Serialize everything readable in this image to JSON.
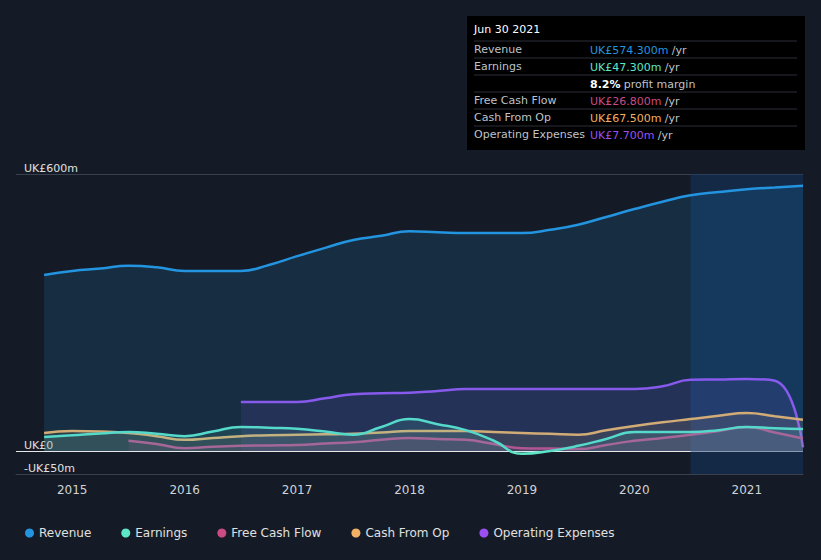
{
  "chart_data": {
    "type": "line",
    "x": [
      2014.75,
      2015,
      2015.25,
      2015.5,
      2015.75,
      2016,
      2016.25,
      2016.5,
      2016.75,
      2017,
      2017.25,
      2017.5,
      2017.75,
      2018,
      2018.25,
      2018.5,
      2018.75,
      2019,
      2019.25,
      2019.5,
      2019.75,
      2020,
      2020.25,
      2020.5,
      2020.75,
      2021,
      2021.25,
      2021.5
    ],
    "series": [
      {
        "name": "Revenue",
        "color": "#2394df",
        "values": [
          381,
          390,
          395,
          401,
          398,
          390,
          390,
          390,
          403,
          422,
          440,
          457,
          466,
          476,
          474,
          472,
          472,
          472,
          479,
          490,
          507,
          524,
          540,
          554,
          561,
          567,
          571,
          574.3
        ]
      },
      {
        "name": "Earnings",
        "color": "#5ee5c8",
        "values": [
          30,
          34,
          38,
          41,
          37,
          32,
          42,
          52,
          50,
          48,
          42,
          35,
          52,
          69,
          58,
          45,
          22,
          -6,
          0,
          11,
          26,
          41,
          41,
          41,
          45,
          52,
          49,
          47.3
        ]
      },
      {
        "name": "Free Cash Flow",
        "color": "#cb4b84",
        "values": [
          null,
          null,
          null,
          22,
          15,
          6,
          9,
          11,
          12,
          13,
          16,
          19,
          24,
          28,
          26,
          24,
          15,
          6,
          5,
          4,
          13,
          22,
          28,
          35,
          43,
          52,
          40,
          26.8
        ]
      },
      {
        "name": "Cash From Op",
        "color": "#f2b064",
        "values": [
          39,
          43,
          42,
          39,
          32,
          24,
          28,
          32,
          34,
          35,
          36,
          37,
          40,
          43,
          43,
          43,
          41,
          39,
          37,
          35,
          45,
          54,
          62,
          69,
          76,
          82,
          75,
          67.5
        ]
      },
      {
        "name": "Operating Expenses",
        "color": "#9b4ff0",
        "values": [
          null,
          null,
          null,
          null,
          null,
          null,
          null,
          106,
          106,
          106,
          114,
          123,
          125,
          126,
          130,
          134,
          134,
          134,
          134,
          134,
          134,
          134,
          140,
          154,
          155,
          156,
          152,
          7.7
        ]
      }
    ],
    "xlim": [
      2014.5,
      2021.5
    ],
    "xticks": [
      2015,
      2016,
      2017,
      2018,
      2019,
      2020,
      2021
    ],
    "ylim": [
      -50,
      600
    ],
    "yticks": [
      {
        "value": -50,
        "label": "-UK£50m"
      },
      {
        "value": 0,
        "label": "UK£0"
      },
      {
        "value": 600,
        "label": "UK£600m"
      }
    ],
    "highlight_x": [
      2020.5,
      2021.5
    ],
    "grid": true,
    "legend": "bottom",
    "annotation": {
      "title": "Jun 30 2021",
      "rows": [
        {
          "label": "Revenue",
          "value": "UK£574.300m",
          "unit": "/yr",
          "color": "#2394df"
        },
        {
          "label": "Earnings",
          "value": "UK£47.300m",
          "unit": "/yr",
          "color": "#5ee5c8"
        },
        {
          "value": "8.2%",
          "unit": "profit margin",
          "color": "#ffffff"
        },
        {
          "label": "Free Cash Flow",
          "value": "UK£26.800m",
          "unit": "/yr",
          "color": "#cb4b84"
        },
        {
          "label": "Cash From Op",
          "value": "UK£67.500m",
          "unit": "/yr",
          "color": "#f2b064"
        },
        {
          "label": "Operating Expenses",
          "value": "UK£7.700m",
          "unit": "/yr",
          "color": "#9b4ff0"
        }
      ]
    }
  }
}
